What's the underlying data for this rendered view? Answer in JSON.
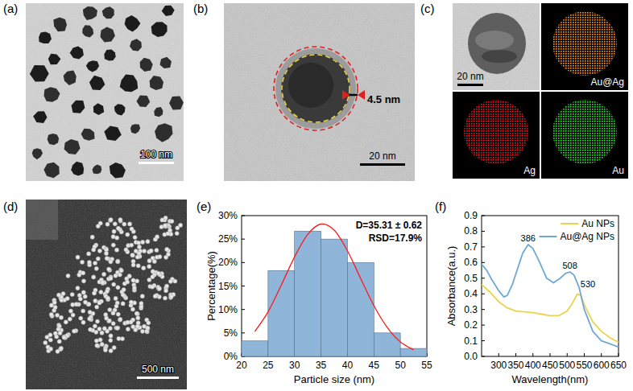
{
  "panels": [
    {
      "label": "(a)",
      "scale_bar": "100 nm"
    },
    {
      "label": "(b)",
      "scale_bar": "20 nm",
      "shell_thickness": "4.5 nm"
    },
    {
      "label": "(c)",
      "scale_bar": "20 nm",
      "maps": [
        "Au@Ag",
        "Ag",
        "Au"
      ]
    },
    {
      "label": "(d)",
      "scale_bar": "500 nm"
    },
    {
      "label": "(e)"
    },
    {
      "label": "(f)"
    }
  ],
  "chart_data": [
    {
      "type": "histogram",
      "xlabel": "Particle size (nm)",
      "ylabel": "Percentage(%)",
      "bins": [
        20,
        25,
        30,
        35,
        40,
        45,
        50,
        55
      ],
      "values": [
        3.3,
        18.3,
        26.7,
        25,
        20,
        5,
        1.7
      ],
      "color": "#8fb6d8",
      "fit": {
        "x": [
          22.5,
          25,
          27.5,
          30,
          32.5,
          35,
          37.5,
          40,
          42.5,
          45,
          47.5,
          50,
          52.5
        ],
        "values": [
          5.3,
          9.5,
          15.2,
          21.2,
          26.0,
          28.2,
          26.9,
          22.5,
          16.6,
          10.8,
          6.2,
          3.1,
          1.4
        ],
        "color": "#ff1a1a"
      },
      "annotations": [
        "D=35.31 ± 0.62",
        "RSD=17.9%"
      ],
      "xlim": [
        20,
        55
      ],
      "ylim": [
        0,
        30
      ],
      "xticks": [
        20,
        25,
        30,
        35,
        40,
        45,
        50,
        55
      ],
      "yticks": [
        {
          "value": 0,
          "label": "0%"
        },
        {
          "value": 5,
          "label": "5%"
        },
        {
          "value": 10,
          "label": "10%"
        },
        {
          "value": 15,
          "label": "15%"
        },
        {
          "value": 20,
          "label": "20%"
        },
        {
          "value": 25,
          "label": "25%"
        },
        {
          "value": 30,
          "label": "30%"
        }
      ]
    },
    {
      "type": "line",
      "xlabel": "Wavelength(nm)",
      "ylabel": "Absorbance(a.u.)",
      "xlim": [
        250,
        650
      ],
      "ylim": [
        0,
        0.9
      ],
      "xticks": [
        300,
        350,
        400,
        450,
        500,
        550,
        600,
        650
      ],
      "yticks": [
        {
          "value": 0,
          "label": "0.0"
        },
        0.1,
        0.2,
        0.3,
        0.4,
        0.5,
        0.6,
        0.7,
        0.8,
        0.9
      ],
      "legend": "upper right",
      "series": [
        {
          "name": "Au NPs",
          "color": "#e8d44d",
          "x": [
            250,
            275,
            300,
            325,
            350,
            375,
            400,
            425,
            450,
            475,
            500,
            515,
            530,
            540,
            550,
            575,
            600,
            625,
            650
          ],
          "values": [
            0.46,
            0.41,
            0.35,
            0.31,
            0.29,
            0.285,
            0.28,
            0.27,
            0.26,
            0.26,
            0.29,
            0.34,
            0.4,
            0.39,
            0.33,
            0.22,
            0.16,
            0.12,
            0.09
          ],
          "peaks": [
            530
          ]
        },
        {
          "name": "Au@Ag NPs",
          "color": "#6fa8d6",
          "x": [
            250,
            265,
            280,
            300,
            315,
            325,
            340,
            355,
            370,
            386,
            400,
            420,
            440,
            460,
            480,
            495,
            508,
            520,
            535,
            550,
            575,
            600,
            625,
            650
          ],
          "values": [
            0.59,
            0.55,
            0.49,
            0.42,
            0.38,
            0.39,
            0.46,
            0.56,
            0.66,
            0.715,
            0.69,
            0.6,
            0.5,
            0.47,
            0.5,
            0.53,
            0.54,
            0.52,
            0.44,
            0.3,
            0.16,
            0.1,
            0.08,
            0.06
          ],
          "peaks": [
            386,
            508
          ]
        }
      ]
    }
  ]
}
